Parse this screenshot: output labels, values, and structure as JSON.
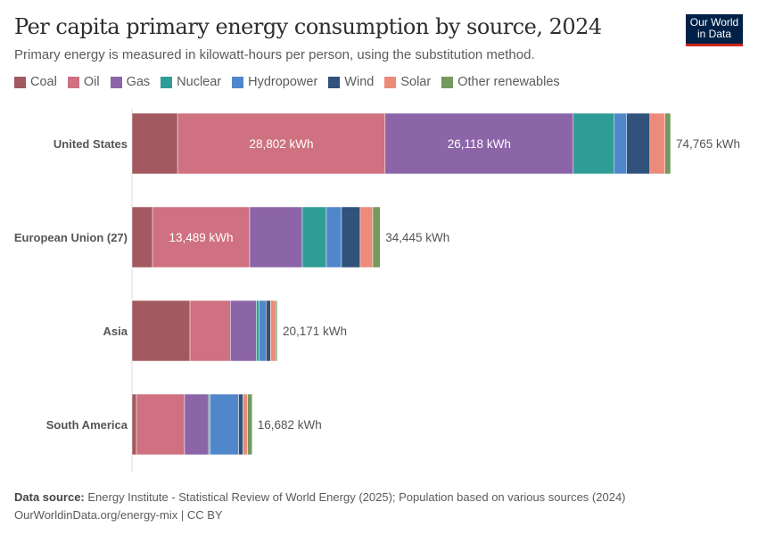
{
  "header": {
    "title": "Per capita primary energy consumption by source, 2024",
    "subtitle": "Primary energy is measured in kilowatt-hours per person, using the substitution method.",
    "logo": "Our World in Data"
  },
  "chart_data": {
    "type": "bar",
    "orientation": "horizontal",
    "stacked": true,
    "title": "Per capita primary energy consumption by source, 2024",
    "unit": "kWh",
    "categories": [
      "United States",
      "European Union (27)",
      "Asia",
      "South America"
    ],
    "totals": [
      "74,765 kWh",
      "34,445 kWh",
      "20,171 kWh",
      "16,682 kWh"
    ],
    "total_values": [
      74765,
      34445,
      20171,
      16682
    ],
    "series": [
      {
        "name": "Coal",
        "color": "#a2595f",
        "values": [
          6330,
          2850,
          8050,
          620
        ]
      },
      {
        "name": "Oil",
        "color": "#cf7180",
        "values": [
          28802,
          13489,
          5600,
          6680
        ],
        "labels": [
          "28,802 kWh",
          "13,489 kWh",
          "",
          ""
        ]
      },
      {
        "name": "Gas",
        "color": "#8c64a8",
        "values": [
          26118,
          7300,
          3600,
          3340
        ],
        "labels": [
          "26,118 kWh",
          "",
          "",
          ""
        ]
      },
      {
        "name": "Nuclear",
        "color": "#2f9d96",
        "values": [
          5690,
          3340,
          370,
          200
        ]
      },
      {
        "name": "Hydropower",
        "color": "#5087cb",
        "values": [
          1730,
          2100,
          990,
          3960
        ]
      },
      {
        "name": "Wind",
        "color": "#30527b",
        "values": [
          3220,
          2600,
          620,
          620
        ]
      },
      {
        "name": "Solar",
        "color": "#ec8b7a",
        "values": [
          2100,
          1740,
          740,
          620
        ]
      },
      {
        "name": "Other renewables",
        "color": "#73995f",
        "values": [
          775,
          1026,
          201,
          642
        ]
      }
    ],
    "legend_position": "top",
    "grid": false
  },
  "footer": {
    "source_label": "Data source:",
    "source": "Energy Institute - Statistical Review of World Energy (2025); Population based on various sources (2024)",
    "url": "OurWorldinData.org/energy-mix | CC BY"
  }
}
